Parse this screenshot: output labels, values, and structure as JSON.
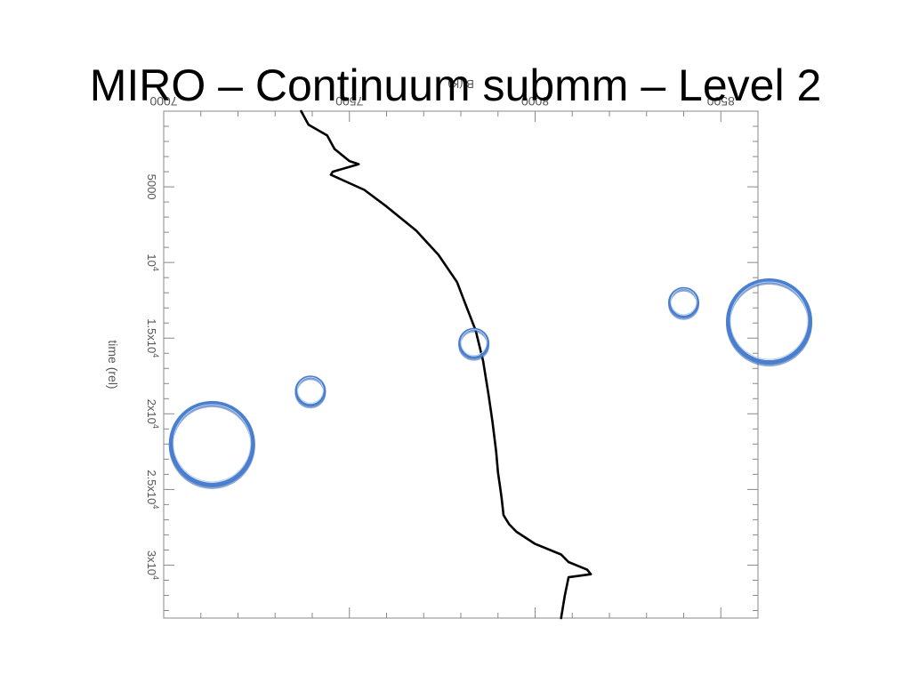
{
  "slide": {
    "title": "MIRO – Continuum submm – Level 2"
  },
  "chart_data": {
    "type": "line",
    "title": "MIRO – Continuum submm – Level 2",
    "xlabel": "B (K)",
    "ylabel": "time (rel)",
    "x_axis_position": "top",
    "y_axis_inverted": true,
    "xlim": [
      7000,
      8600
    ],
    "ylim": [
      0,
      33500
    ],
    "grid": false,
    "x_ticks": [
      {
        "value": 7000,
        "label": "7000"
      },
      {
        "value": 7500,
        "label": "7500"
      },
      {
        "value": 8000,
        "label": "8000"
      },
      {
        "value": 8500,
        "label": "8500"
      }
    ],
    "y_ticks": [
      {
        "value": 5000,
        "label_base": "5000",
        "label_exp": ""
      },
      {
        "value": 10000,
        "label_base": "10",
        "label_exp": "4"
      },
      {
        "value": 15000,
        "label_base": "1.5x10",
        "label_exp": "4"
      },
      {
        "value": 20000,
        "label_base": "2x10",
        "label_exp": "4"
      },
      {
        "value": 25000,
        "label_base": "2.5x10",
        "label_exp": "4"
      },
      {
        "value": 30000,
        "label_base": "3x10",
        "label_exp": "4"
      }
    ],
    "series": [
      {
        "color": "#000000",
        "x": [
          7370,
          7390,
          7440,
          7460,
          7500,
          7525,
          7455,
          7450,
          7540,
          7600,
          7680,
          7740,
          7790,
          7810,
          7840,
          7860,
          7875,
          7885,
          7895,
          7900,
          7905,
          7910,
          7915,
          7930,
          7950,
          8000,
          8070,
          8090,
          8140,
          8150,
          8090,
          8080,
          8070
        ],
        "y": [
          0,
          900,
          1600,
          2500,
          3300,
          3500,
          4000,
          4200,
          5200,
          6300,
          7900,
          9500,
          11300,
          12600,
          14500,
          16500,
          18800,
          20500,
          22500,
          23900,
          24700,
          25600,
          26700,
          27300,
          27800,
          28600,
          29300,
          29800,
          30300,
          30600,
          30800,
          32000,
          33500
        ]
      }
    ],
    "annotations": [
      {
        "shape": "circle",
        "color": "#4a7fd0",
        "x": 7130,
        "y": 22000,
        "size": "large"
      },
      {
        "shape": "circle",
        "color": "#4a7fd0",
        "x": 7395,
        "y": 18500,
        "size": "small"
      },
      {
        "shape": "circle",
        "color": "#4a7fd0",
        "x": 7835,
        "y": 15350,
        "size": "small"
      },
      {
        "shape": "circle",
        "color": "#4a7fd0",
        "x": 8400,
        "y": 12650,
        "size": "small"
      },
      {
        "shape": "circle",
        "color": "#4a7fd0",
        "x": 8630,
        "y": 13900,
        "size": "large"
      }
    ]
  }
}
